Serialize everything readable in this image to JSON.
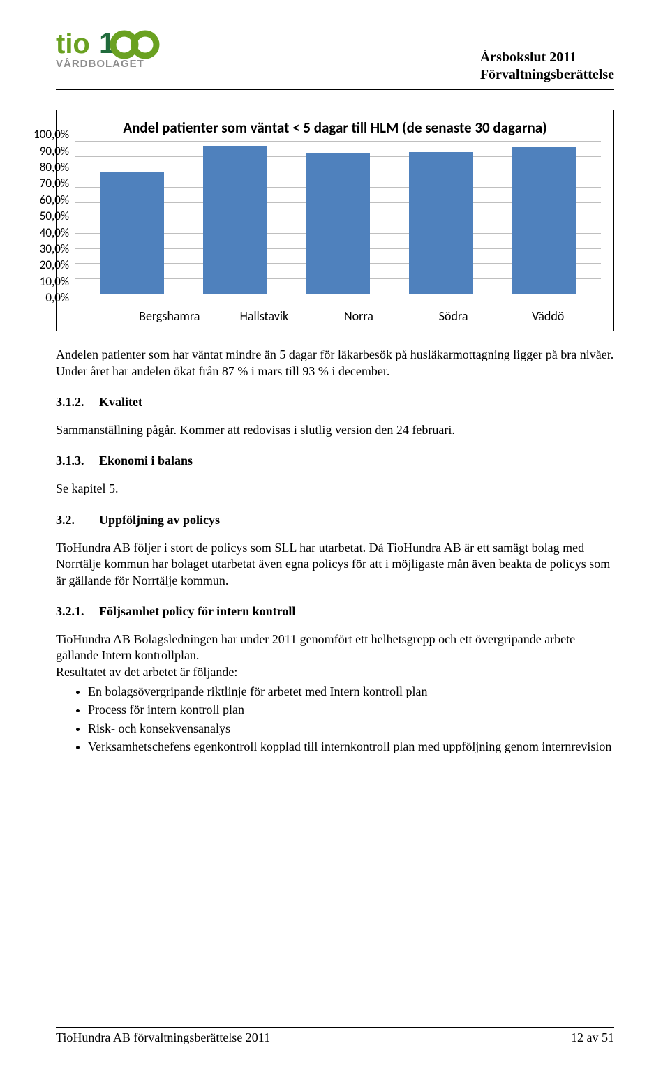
{
  "logo": {
    "brand_main": "tio",
    "brand_accent_color": "#6aa121",
    "brand_dark_color": "#216b3c",
    "subline": "VÅRDBOLAGET",
    "subline_color": "#8e8e8e"
  },
  "doc_header": {
    "line1": "Årsbokslut 2011",
    "line2": "Förvaltningsberättelse"
  },
  "chart": {
    "type": "bar",
    "title": "Andel patienter som väntat < 5 dagar till HLM (de senaste 30 dagarna)",
    "categories": [
      "Bergshamra",
      "Hallstavik",
      "Norra",
      "Södra",
      "Väddö"
    ],
    "values": [
      80,
      97,
      92,
      93,
      96
    ],
    "y_ticks": [
      "100,0%",
      "90,0%",
      "80,0%",
      "70,0%",
      "60,0%",
      "50,0%",
      "40,0%",
      "30,0%",
      "20,0%",
      "10,0%",
      "0,0%"
    ],
    "ylim": [
      0,
      100
    ],
    "bar_color": "#4f81bd",
    "grid_color": "#bfbfbf",
    "axis_color": "#888888",
    "background_color": "#ffffff",
    "title_fontsize": 21,
    "label_fontsize": 18,
    "tick_fontsize": 17,
    "bar_width": 0.62
  },
  "paragraphs": {
    "p1": "Andelen patienter som har väntat mindre än 5 dagar för läkarbesök på husläkarmottagning ligger på bra nivåer. Under året har andelen ökat från 87 % i mars till 93 % i december.",
    "p_kvalitet": "Sammanställning pågår. Kommer att redovisas i slutlig version den 24 februari.",
    "p_ekonomi": "Se kapitel 5.",
    "p_policys": "TioHundra AB följer i stort de policys som SLL har utarbetat. Då TioHundra AB är ett samägt bolag med Norrtälje kommun har bolaget utarbetat även egna policys för att i möjligaste mån även beakta de policys som är gällande för Norrtälje kommun.",
    "p_intern_1": "TioHundra AB Bolagsledningen har under 2011 genomfört ett helhetsgrepp och ett övergripande arbete gällande Intern kontrollplan.",
    "p_intern_2": "Resultatet av det arbetet är följande:"
  },
  "headings": {
    "h312_num": "3.1.2.",
    "h312_text": "Kvalitet",
    "h313_num": "3.1.3.",
    "h313_text": "Ekonomi i balans",
    "h32_num": "3.2.",
    "h32_text": "Uppföljning av policys",
    "h321_num": "3.2.1.",
    "h321_text": "Följsamhet policy för intern kontroll"
  },
  "bullets": [
    "En bolagsövergripande riktlinje för arbetet med Intern kontroll plan",
    "Process för intern kontroll plan",
    "Risk- och konsekvensanalys",
    "Verksamhetschefens egenkontroll kopplad till internkontroll plan med uppföljning genom internrevision"
  ],
  "footer": {
    "left": "TioHundra AB förvaltningsberättelse 2011",
    "right": "12 av 51"
  }
}
